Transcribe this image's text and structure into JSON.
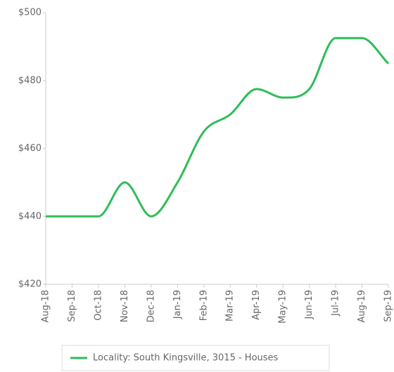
{
  "chart_data": {
    "type": "line",
    "categories": [
      "Aug-18",
      "Sep-18",
      "Oct-18",
      "Nov-18",
      "Dec-18",
      "Jan-19",
      "Feb-19",
      "Mar-19",
      "Apr-19",
      "May-19",
      "Jun-19",
      "Jul-19",
      "Aug-19",
      "Sep-19"
    ],
    "series": [
      {
        "name": "Locality: South Kingsville, 3015 - Houses",
        "color": "#2ebd59",
        "values": [
          440,
          440,
          440,
          450,
          440,
          450,
          465,
          470,
          477.5,
          475,
          477.5,
          492.5,
          492.5,
          485
        ]
      }
    ],
    "ylim": [
      420,
      500
    ],
    "yticks": [
      {
        "value": 420,
        "label": "$420"
      },
      {
        "value": 440,
        "label": "$440"
      },
      {
        "value": 460,
        "label": "$460"
      },
      {
        "value": 480,
        "label": "$480"
      },
      {
        "value": 500,
        "label": "$500"
      }
    ],
    "legend": "bottom"
  }
}
